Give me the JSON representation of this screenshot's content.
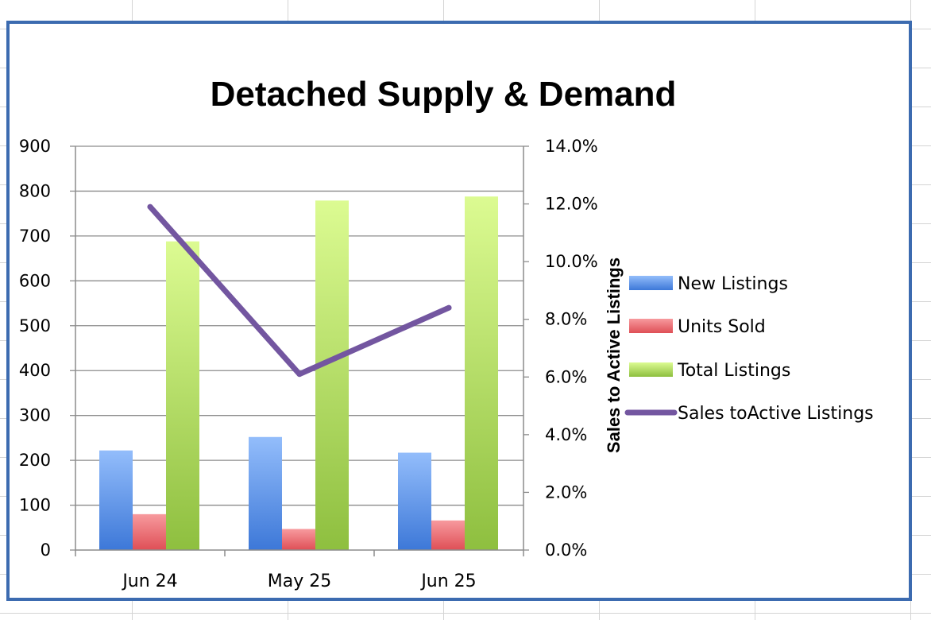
{
  "chart_data": {
    "type": "bar",
    "title": "Detached Supply & Demand",
    "categories": [
      "Jun 24",
      "May 25",
      "Jun 25"
    ],
    "series": [
      {
        "name": "New Listings",
        "type": "bar",
        "axis": "left",
        "values": [
          222,
          252,
          217
        ]
      },
      {
        "name": "Units Sold",
        "type": "bar",
        "axis": "left",
        "values": [
          80,
          47,
          66
        ]
      },
      {
        "name": "Total Listings",
        "type": "bar",
        "axis": "left",
        "values": [
          688,
          779,
          788
        ]
      },
      {
        "name": "Sales toActive Listings",
        "type": "line",
        "axis": "right",
        "values": [
          11.9,
          6.1,
          8.4
        ]
      }
    ],
    "y_left": {
      "min": 0,
      "max": 900,
      "ticks": [
        "0",
        "100",
        "200",
        "300",
        "400",
        "500",
        "600",
        "700",
        "800",
        "900"
      ]
    },
    "y_right": {
      "label": "Sales to Active Listings",
      "min": 0,
      "max": 14,
      "ticks": [
        "0.0%",
        "2.0%",
        "4.0%",
        "6.0%",
        "8.0%",
        "10.0%",
        "12.0%",
        "14.0%"
      ]
    },
    "grid": true,
    "legend": "right",
    "colors": {
      "New Listings": "#5b8fe0",
      "Units Sold": "#e8616a",
      "Total Listings": "#a8d45a",
      "Sales toActive Listings": "#7356a0"
    }
  }
}
